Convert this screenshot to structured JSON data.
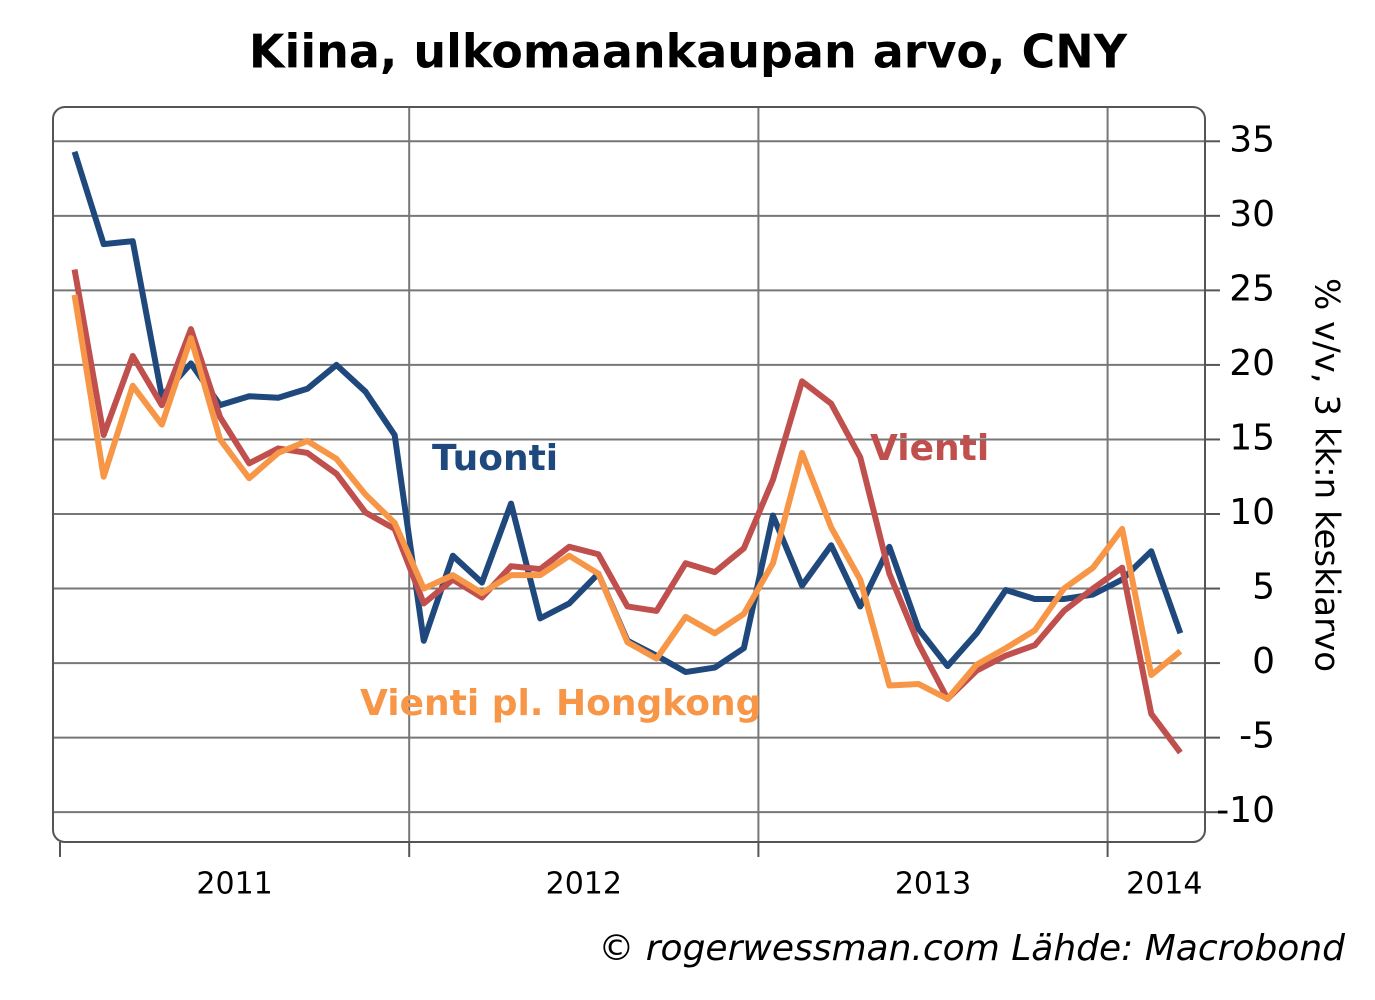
{
  "chart_data": {
    "type": "line",
    "title": "Kiina, ulkomaankaupan arvo, CNY",
    "y_axis_label": "% v/v, 3 kk:n keskiarvo",
    "source": "© rogerwessman.com Lähde: Macrobond",
    "year_labels": [
      "2011",
      "2012",
      "2013",
      "2014"
    ],
    "categories": [
      null,
      null,
      null,
      null,
      null,
      null,
      null,
      null,
      null,
      null,
      null,
      null,
      null,
      null,
      null,
      null,
      null,
      null,
      null,
      null,
      null,
      null,
      null,
      null,
      null,
      null,
      null,
      null,
      null,
      null,
      null,
      null,
      null,
      null,
      null,
      null,
      null,
      null,
      null
    ],
    "series": [
      {
        "name": "Tuonti",
        "color": "#1f497d",
        "values": [
          34.3,
          28.1,
          28.3,
          17.9,
          20.1,
          17.3,
          17.9,
          17.8,
          18.4,
          20.0,
          18.2,
          15.3,
          1.5,
          7.2,
          5.4,
          10.7,
          3.0,
          4.0,
          6.0,
          1.5,
          0.5,
          -0.6,
          -0.3,
          1.0,
          9.9,
          5.2,
          7.9,
          3.8,
          7.8,
          2.3,
          -0.2,
          2.0,
          4.9,
          4.3,
          4.3,
          4.6,
          5.6,
          7.5,
          2.0
        ]
      },
      {
        "name": "Vienti",
        "color": "#c0504d",
        "values": [
          26.4,
          15.3,
          20.6,
          17.3,
          22.4,
          16.5,
          13.4,
          14.4,
          14.1,
          12.7,
          10.1,
          9.0,
          4.0,
          5.6,
          4.4,
          6.5,
          6.3,
          7.8,
          7.3,
          3.8,
          3.5,
          6.7,
          6.1,
          7.7,
          12.3,
          18.9,
          17.4,
          13.8,
          6.0,
          1.3,
          -2.4,
          -0.5,
          0.5,
          1.2,
          3.5,
          5.0,
          6.4,
          -3.4,
          -6.0
        ]
      },
      {
        "name": "Vienti pl. Hongkong",
        "color": "#f79646",
        "values": [
          24.7,
          12.5,
          18.6,
          16.0,
          21.8,
          15.0,
          12.4,
          14.1,
          14.9,
          13.7,
          11.3,
          9.4,
          5.0,
          5.9,
          4.7,
          5.9,
          5.9,
          7.2,
          6.0,
          1.4,
          0.3,
          3.1,
          2.0,
          3.3,
          6.7,
          14.1,
          9.1,
          5.6,
          -1.5,
          -1.4,
          -2.4,
          -0.1,
          1.0,
          2.2,
          5.0,
          6.4,
          9.0,
          -0.8,
          0.8
        ]
      }
    ],
    "ylim": [
      -12,
      37.3
    ],
    "yticks": [
      -10,
      -5,
      0,
      5,
      10,
      15,
      20,
      25,
      30,
      35
    ],
    "grid": true
  }
}
